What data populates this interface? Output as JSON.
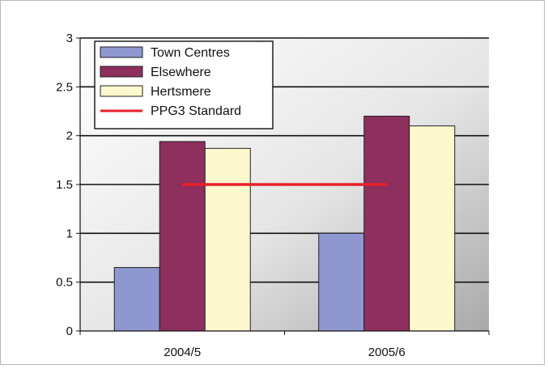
{
  "chart_data": {
    "type": "bar",
    "title": "",
    "xlabel": "",
    "ylabel": "",
    "categories": [
      "2004/5",
      "2005/6"
    ],
    "ylim": [
      0,
      3
    ],
    "yticks": [
      "0",
      "0.5",
      "1",
      "1.5",
      "2",
      "2.5",
      "3"
    ],
    "grid": true,
    "legend_position": "top-left",
    "series": [
      {
        "name": "Town Centres",
        "values": [
          0.65,
          1.0
        ],
        "color": "#8e97d0"
      },
      {
        "name": "Elsewhere",
        "values": [
          1.94,
          2.2
        ],
        "color": "#8e2f5d"
      },
      {
        "name": "Hertsmere",
        "values": [
          1.87,
          2.1
        ],
        "color": "#fdf8ce"
      }
    ],
    "reference_line": {
      "name": "PPG3 Standard",
      "value": 1.5,
      "color": "#e8202a"
    }
  }
}
